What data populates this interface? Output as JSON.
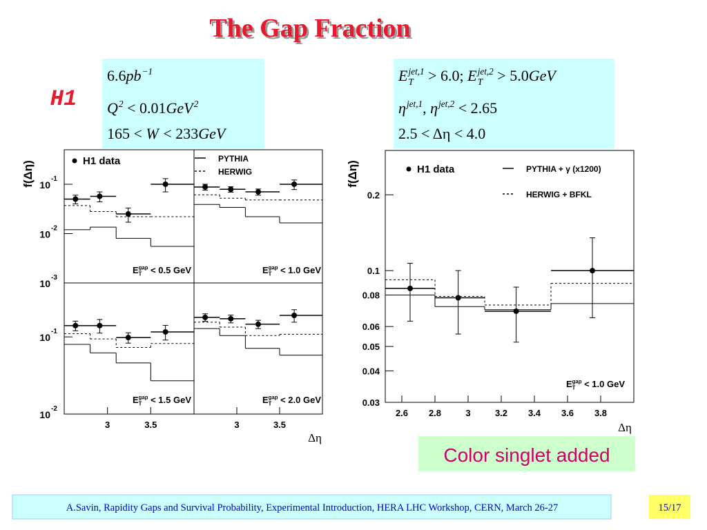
{
  "title": "The Gap Fraction",
  "experiment": "H1",
  "cuts_left": [
    [
      {
        "text": "6.6"
      },
      {
        "text": "pb",
        "italic": true,
        "sup": "−1"
      }
    ],
    [
      {
        "text": "Q",
        "italic": true,
        "sup": "2"
      },
      {
        "text": " < 0.01"
      },
      {
        "text": "GeV",
        "italic": true,
        "sup": "2"
      }
    ],
    [
      {
        "text": "165 < "
      },
      {
        "text": "W",
        "italic": true
      },
      {
        "text": " < 233"
      },
      {
        "text": "GeV",
        "italic": true
      }
    ]
  ],
  "cuts_right": [
    [
      {
        "text": "E",
        "italic": true,
        "sup": "jet,1",
        "sub": "T"
      },
      {
        "text": " > 6.0; "
      },
      {
        "text": "E",
        "italic": true,
        "sup": "jet,2",
        "sub": "T"
      },
      {
        "text": " > 5.0"
      },
      {
        "text": "GeV",
        "italic": true
      }
    ],
    [
      {
        "text": "η",
        "italic": true,
        "sup": "jet,1"
      },
      {
        "text": ", "
      },
      {
        "text": "η",
        "italic": true,
        "sup": "jet,2"
      },
      {
        "text": " < 2.65"
      }
    ],
    [
      {
        "text": "2.5 < Δη < 4.0"
      }
    ]
  ],
  "note": "Color singlet added",
  "footer": "A.Savin, Rapidity Gaps and Survival Probability, Experimental Introduction, HERA LHC Workshop, CERN, March 26-27",
  "page": "15/17",
  "chart_data": [
    {
      "type": "histogram",
      "log_y": true,
      "ylabel": "f(Δη)",
      "annotation": [
        {
          "text": "E",
          "sub": "T",
          "sup": "gap"
        },
        {
          "text": " < 0.5 GeV"
        }
      ],
      "bins": [
        2.5,
        2.8,
        3.1,
        3.5,
        4.0
      ],
      "xlim": [
        2.5,
        4.0
      ],
      "ylim": [
        0.001,
        0.5
      ],
      "yticks": [
        {
          "value": 0.1,
          "label": "10",
          "exponent": "-1"
        },
        {
          "value": 0.01,
          "label": "10",
          "exponent": "-2"
        },
        {
          "value": 0.001,
          "label": "10",
          "exponent": "-3"
        }
      ],
      "series": [
        {
          "name": "H1 data",
          "style": "points",
          "color": "#000000",
          "x": [
            2.63,
            2.91,
            3.24,
            3.67
          ],
          "values": [
            0.05,
            0.057,
            0.025,
            0.1
          ],
          "errors": [
            0.01,
            0.013,
            0.008,
            0.03
          ]
        },
        {
          "style": "solid",
          "color": "#000000",
          "values": [
            0.012,
            0.0135,
            0.008,
            0.0055
          ]
        },
        {
          "style": "dashed",
          "color": "#000000",
          "values": [
            0.037,
            0.028,
            0.022,
            0.022
          ]
        }
      ]
    },
    {
      "type": "histogram",
      "log_y": true,
      "annotation": [
        {
          "text": "E",
          "sub": "T",
          "sup": "gap"
        },
        {
          "text": " < 1.0 GeV"
        }
      ],
      "bins": [
        2.5,
        2.8,
        3.1,
        3.5,
        4.0
      ],
      "xlim": [
        2.5,
        4.0
      ],
      "ylim": [
        0.001,
        0.5
      ],
      "series": [
        {
          "style": "points",
          "color": "#000000",
          "x": [
            2.63,
            2.93,
            3.25,
            3.67
          ],
          "values": [
            0.088,
            0.079,
            0.07,
            0.1
          ],
          "errors": [
            0.012,
            0.01,
            0.01,
            0.022
          ]
        },
        {
          "name": "PYTHIA",
          "style": "solid",
          "color": "#000000",
          "values": [
            0.039,
            0.034,
            0.022,
            0.0165
          ]
        },
        {
          "name": "HERWIG",
          "style": "dashed",
          "color": "#000000",
          "values": [
            0.061,
            0.052,
            0.048,
            0.048
          ]
        }
      ]
    },
    {
      "type": "histogram",
      "log_y": true,
      "annotation": [
        {
          "text": "E",
          "sub": "T",
          "sup": "gap"
        },
        {
          "text": " < 1.5 GeV"
        }
      ],
      "bins": [
        2.5,
        2.8,
        3.1,
        3.5,
        4.0
      ],
      "xlim": [
        2.5,
        4.0
      ],
      "ylim": [
        0.01,
        0.5
      ],
      "xticks": [
        3,
        3.5
      ],
      "yticks": [
        {
          "value": 0.1,
          "label": "10",
          "exponent": "-1"
        },
        {
          "value": 0.01,
          "label": "10",
          "exponent": "-2"
        }
      ],
      "series": [
        {
          "style": "points",
          "color": "#000000",
          "x": [
            2.63,
            2.91,
            3.24,
            3.67
          ],
          "values": [
            0.14,
            0.14,
            0.098,
            0.116
          ],
          "errors": [
            0.02,
            0.028,
            0.015,
            0.025
          ]
        },
        {
          "style": "solid",
          "color": "#000000",
          "values": [
            0.08,
            0.062,
            0.046,
            0.027
          ]
        },
        {
          "style": "dashed",
          "color": "#000000",
          "values": [
            0.11,
            0.094,
            0.073,
            0.082
          ]
        }
      ]
    },
    {
      "type": "histogram",
      "log_y": true,
      "xlabel": "Δη",
      "annotation": [
        {
          "text": "E",
          "sub": "T",
          "sup": "gap"
        },
        {
          "text": " < 2.0 GeV"
        }
      ],
      "bins": [
        2.5,
        2.8,
        3.1,
        3.5,
        4.0
      ],
      "xlim": [
        2.5,
        4.0
      ],
      "ylim": [
        0.01,
        0.5
      ],
      "xticks": [
        3,
        3.5
      ],
      "series": [
        {
          "style": "points",
          "color": "#000000",
          "x": [
            2.63,
            2.93,
            3.25,
            3.67
          ],
          "values": [
            0.179,
            0.172,
            0.146,
            0.19
          ],
          "errors": [
            0.02,
            0.02,
            0.018,
            0.035
          ]
        },
        {
          "style": "solid",
          "color": "#000000",
          "values": [
            0.128,
            0.104,
            0.071,
            0.058
          ]
        },
        {
          "style": "dashed",
          "color": "#000000",
          "values": [
            0.155,
            0.134,
            0.104,
            0.108
          ]
        }
      ]
    },
    {
      "type": "histogram",
      "log_y": true,
      "ylabel": "f(Δη)",
      "xlabel": "Δη",
      "annotation": [
        {
          "text": "E",
          "sub": "T",
          "sup": "gap"
        },
        {
          "text": " < 1.0 GeV"
        }
      ],
      "bins": [
        2.5,
        2.8,
        3.1,
        3.5,
        4.0
      ],
      "xlim": [
        2.5,
        4.0
      ],
      "ylim": [
        0.03,
        0.3
      ],
      "xticks": [
        2.6,
        2.8,
        3,
        3.2,
        3.4,
        3.6,
        3.8
      ],
      "yticks": [
        0.03,
        0.04,
        0.05,
        0.06,
        0.08,
        0.1,
        0.2
      ],
      "series": [
        {
          "name": "H1 data",
          "style": "points",
          "color": "#000000",
          "x": [
            2.65,
            2.94,
            3.29,
            3.75
          ],
          "values": [
            0.085,
            0.078,
            0.069,
            0.1
          ],
          "errors": [
            0.022,
            0.022,
            0.017,
            0.035
          ]
        },
        {
          "name": "PYTHIA + γ (x1200)",
          "style": "solid",
          "color": "#000000",
          "values": [
            0.08,
            0.072,
            0.07,
            0.074
          ]
        },
        {
          "name": "HERWIG + BFKL",
          "style": "dashed",
          "color": "#000000",
          "values": [
            0.092,
            0.079,
            0.073,
            0.089
          ]
        }
      ]
    }
  ]
}
